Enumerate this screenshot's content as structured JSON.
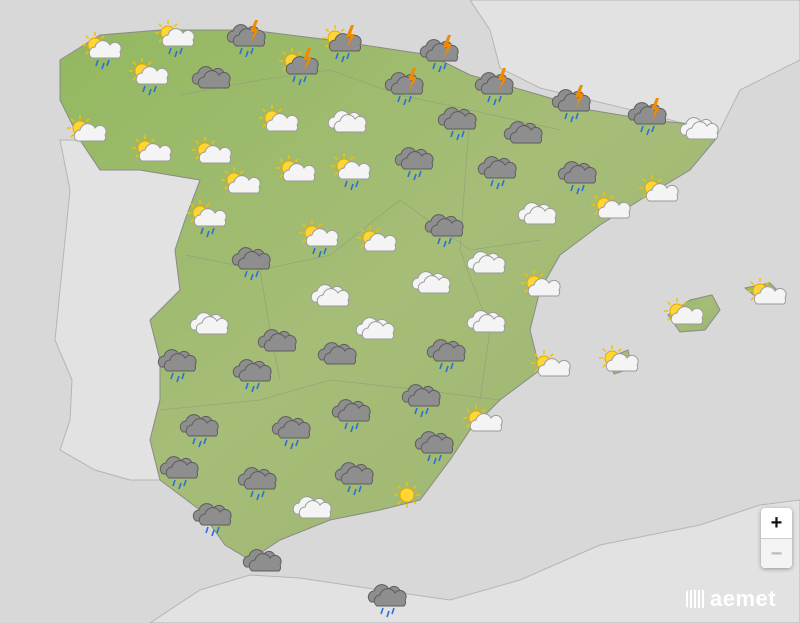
{
  "map": {
    "colors": {
      "sea": "#d8d8d8",
      "neighbor_land": "#e2e2e2",
      "spain_land": "#9fbf6e",
      "borders": "#b0b0b0"
    },
    "forecast_icons": [
      {
        "condition": "partly-cloudy-rain"
      },
      {
        "condition": "partly-cloudy-rain"
      },
      {
        "condition": "storm"
      },
      {
        "condition": "storm-sun"
      },
      {
        "condition": "storm-sun"
      },
      {
        "condition": "storm"
      },
      {
        "condition": "partly-cloudy-rain"
      },
      {
        "condition": "overcast"
      },
      {
        "condition": "storm"
      },
      {
        "condition": "storm"
      },
      {
        "condition": "storm"
      },
      {
        "condition": "storm"
      },
      {
        "condition": "partly-cloudy"
      },
      {
        "condition": "partly-cloudy"
      },
      {
        "condition": "cloudy"
      },
      {
        "condition": "rain"
      },
      {
        "condition": "overcast"
      },
      {
        "condition": "cloudy"
      },
      {
        "condition": "partly-cloudy"
      },
      {
        "condition": "partly-cloudy"
      },
      {
        "condition": "partly-cloudy"
      },
      {
        "condition": "partly-cloudy-rain"
      },
      {
        "condition": "rain"
      },
      {
        "condition": "rain"
      },
      {
        "condition": "rain"
      },
      {
        "condition": "partly-cloudy"
      },
      {
        "condition": "partly-cloudy-rain"
      },
      {
        "condition": "cloudy"
      },
      {
        "condition": "partly-cloudy"
      },
      {
        "condition": "partly-cloudy"
      },
      {
        "condition": "partly-cloudy-rain"
      },
      {
        "condition": "partly-cloudy"
      },
      {
        "condition": "rain"
      },
      {
        "condition": "rain"
      },
      {
        "condition": "cloudy"
      },
      {
        "condition": "partly-cloudy"
      },
      {
        "condition": "cloudy"
      },
      {
        "condition": "cloudy"
      },
      {
        "condition": "partly-cloudy"
      },
      {
        "condition": "partly-cloudy"
      },
      {
        "condition": "cloudy"
      },
      {
        "condition": "cloudy"
      },
      {
        "condition": "cloudy"
      },
      {
        "condition": "overcast"
      },
      {
        "condition": "overcast-rain"
      },
      {
        "condition": "overcast"
      },
      {
        "condition": "rain"
      },
      {
        "condition": "partly-cloudy"
      },
      {
        "condition": "partly-cloudy"
      },
      {
        "condition": "rain"
      },
      {
        "condition": "overcast-rain"
      },
      {
        "condition": "overcast-rain"
      },
      {
        "condition": "mostly-sunny"
      },
      {
        "condition": "overcast-rain"
      },
      {
        "condition": "rain"
      },
      {
        "condition": "rain"
      },
      {
        "condition": "rain"
      },
      {
        "condition": "overcast-rain"
      },
      {
        "condition": "overcast-rain"
      },
      {
        "condition": "cloudy"
      },
      {
        "condition": "sunny"
      },
      {
        "condition": "overcast-rain"
      },
      {
        "condition": "overcast"
      },
      {
        "condition": "rain"
      }
    ]
  },
  "controls": {
    "zoom_in": "+",
    "zoom_out": "−"
  },
  "logo": {
    "text": "aemet"
  }
}
